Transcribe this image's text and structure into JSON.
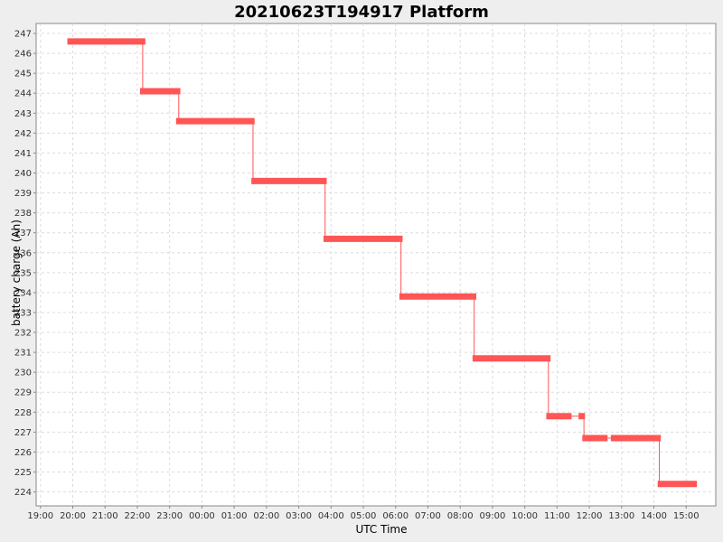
{
  "chart_data": {
    "type": "line",
    "title": "20210623T194917 Platform",
    "xlabel": "UTC Time",
    "ylabel": "battery charge (Ah)",
    "x_ticks": [
      "19:00",
      "20:00",
      "21:00",
      "22:00",
      "23:00",
      "00:00",
      "01:00",
      "02:00",
      "03:00",
      "04:00",
      "05:00",
      "06:00",
      "07:00",
      "08:00",
      "09:00",
      "10:00",
      "11:00",
      "12:00",
      "13:00",
      "14:00",
      "15:00"
    ],
    "x_range": [
      "18:52",
      "15:55"
    ],
    "y_ticks": [
      224,
      225,
      226,
      227,
      228,
      229,
      230,
      231,
      232,
      233,
      234,
      235,
      236,
      237,
      238,
      239,
      240,
      241,
      242,
      243,
      244,
      245,
      246,
      247
    ],
    "ylim": [
      223.3,
      247.5
    ],
    "grid": true,
    "series": [
      {
        "color": "#ff5555",
        "segments": [
          {
            "start": "19:50",
            "end": "22:15",
            "value": 246.6
          },
          {
            "start": "22:05",
            "end": "23:20",
            "value": 244.1
          },
          {
            "start": "23:12",
            "end": "01:38",
            "value": 242.6
          },
          {
            "start": "01:32",
            "end": "03:52",
            "value": 239.6
          },
          {
            "start": "03:46",
            "end": "06:13",
            "value": 236.7
          },
          {
            "start": "06:07",
            "end": "08:30",
            "value": 233.8
          },
          {
            "start": "08:23",
            "end": "10:48",
            "value": 230.7
          },
          {
            "start": "10:40",
            "end": "11:27",
            "value": 227.8
          },
          {
            "start": "11:40",
            "end": "11:52",
            "value": 227.8
          },
          {
            "start": "11:47",
            "end": "12:34",
            "value": 226.7
          },
          {
            "start": "12:40",
            "end": "14:13",
            "value": 226.7
          },
          {
            "start": "14:07",
            "end": "15:20",
            "value": 224.4
          }
        ],
        "drops": [
          {
            "time": "22:10",
            "from": 246.6,
            "to": 244.1
          },
          {
            "time": "23:17",
            "from": 244.1,
            "to": 242.6
          },
          {
            "time": "01:35",
            "from": 242.6,
            "to": 239.6
          },
          {
            "time": "03:49",
            "from": 239.6,
            "to": 236.7
          },
          {
            "time": "06:10",
            "from": 236.7,
            "to": 233.8
          },
          {
            "time": "08:26",
            "from": 233.8,
            "to": 230.7
          },
          {
            "time": "10:44",
            "from": 230.7,
            "to": 227.8
          },
          {
            "time": "11:50",
            "from": 227.8,
            "to": 226.7
          },
          {
            "time": "14:10",
            "from": 226.7,
            "to": 224.4
          }
        ],
        "connectors": [
          {
            "from": "11:27",
            "to": "11:40",
            "value": 227.8
          },
          {
            "from": "12:34",
            "to": "12:40",
            "value": 226.7
          }
        ]
      }
    ]
  }
}
